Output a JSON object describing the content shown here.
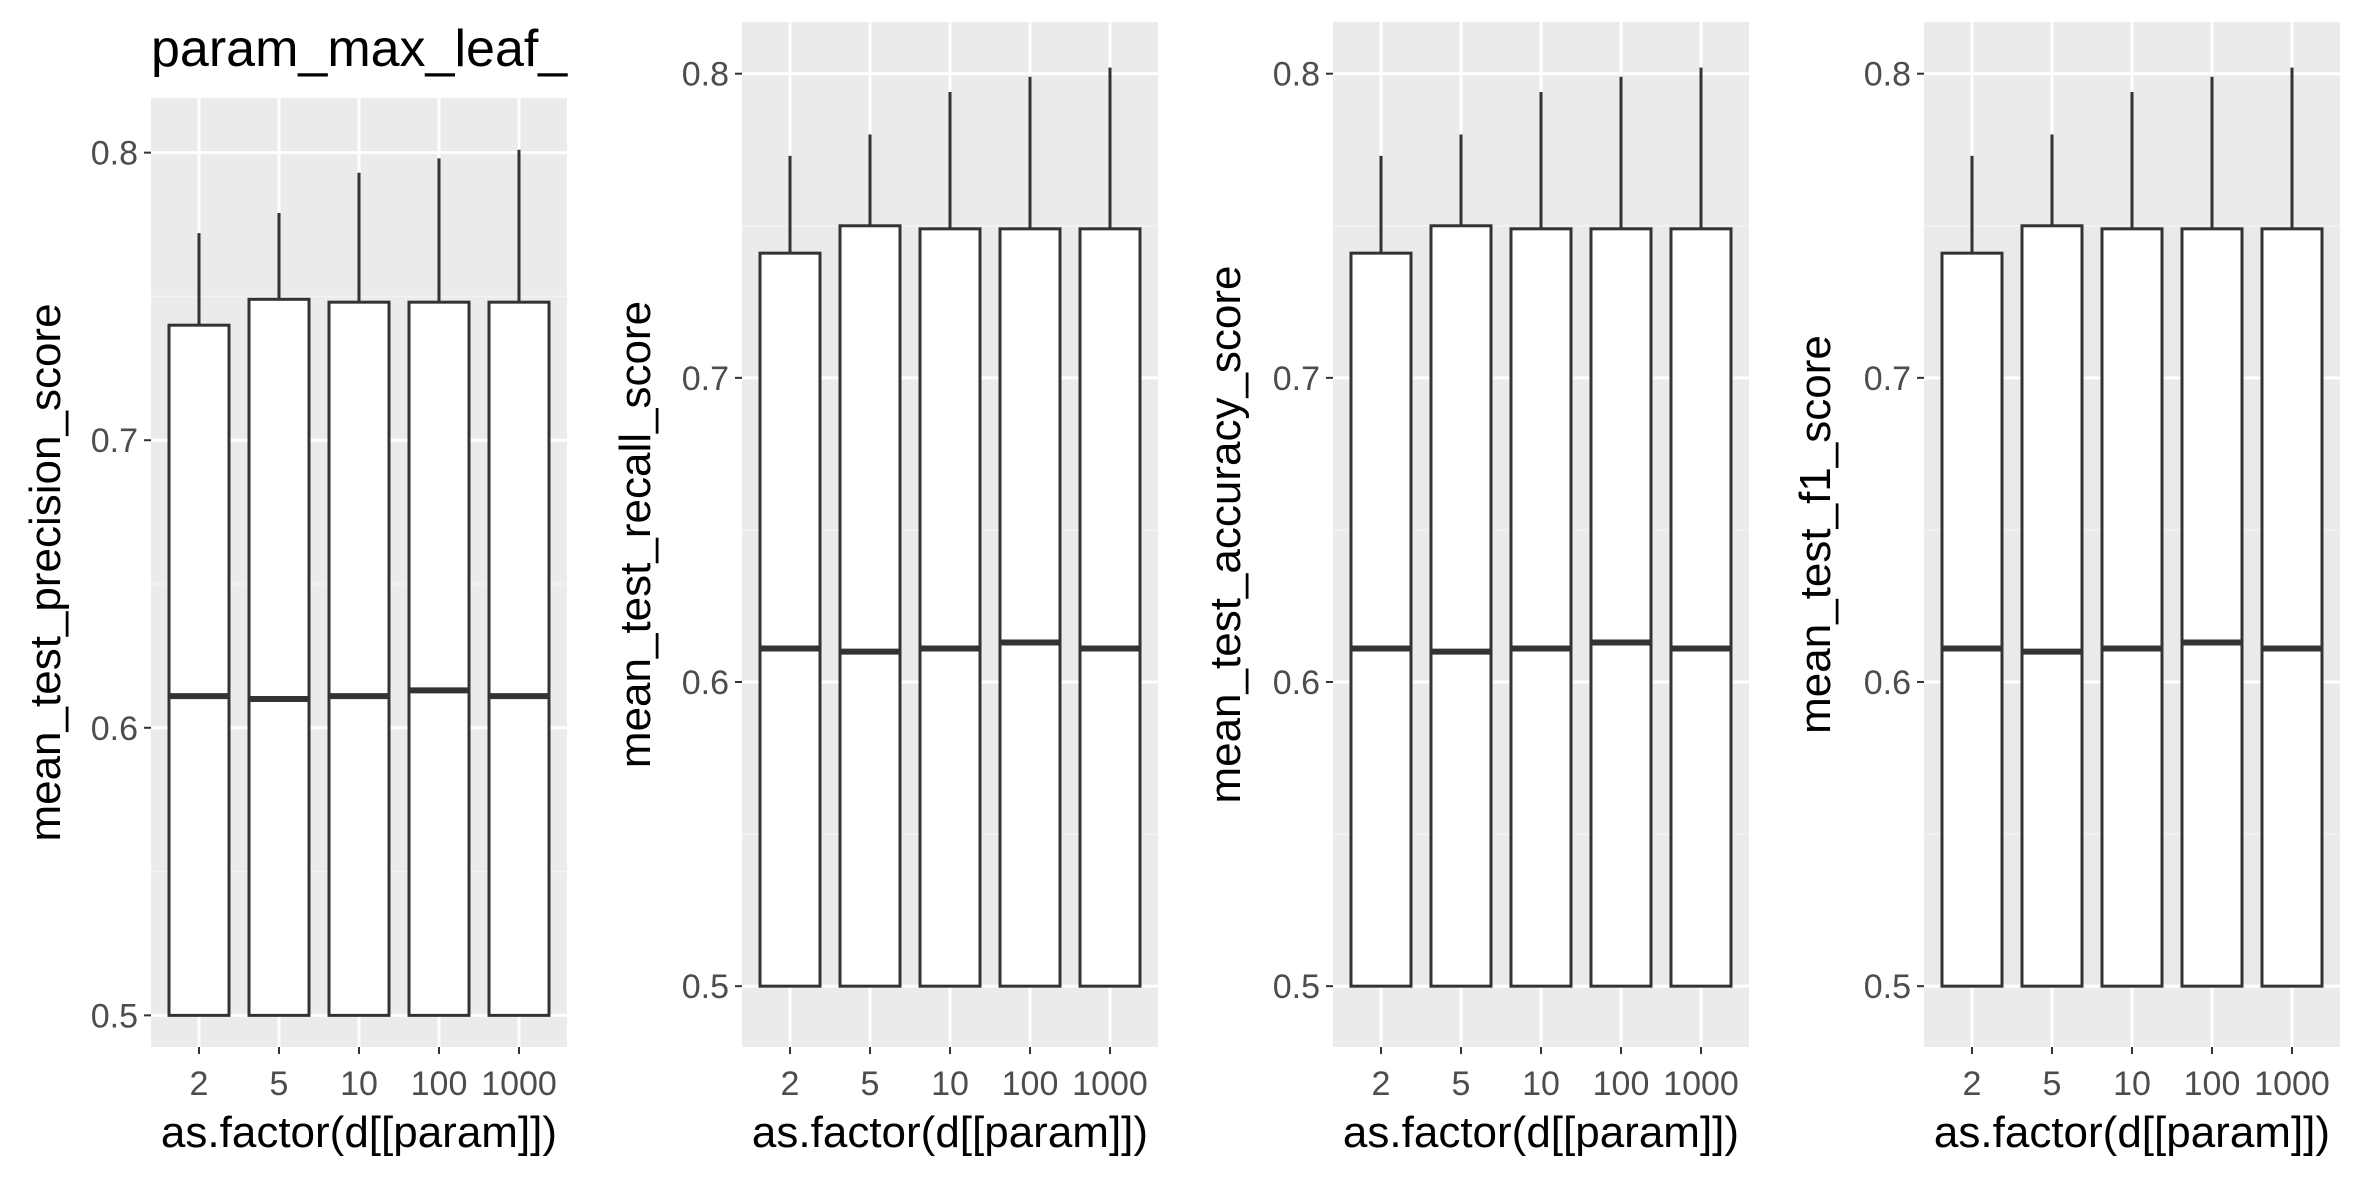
{
  "colors": {
    "panel_bg": "#ebebeb",
    "grid_major": "#ffffff",
    "grid_minor": "#f3f3f3",
    "box_fill": "#ffffff",
    "box_stroke": "#333333",
    "tick_text": "#4d4d4d",
    "tick_mark": "#333333"
  },
  "chart_data": [
    {
      "type": "boxplot",
      "title": "param_max_leaf_",
      "xlabel": "as.factor(d[[param]])",
      "ylabel": "mean_test_precision_score",
      "categories": [
        "2",
        "5",
        "10",
        "100",
        "1000"
      ],
      "yticks": [
        "0.5",
        "0.6",
        "0.7",
        "0.8"
      ],
      "ylim": [
        0.489,
        0.819
      ],
      "grid": true,
      "boxes": [
        {
          "category": "2",
          "lower": 0.5,
          "q1": 0.5,
          "median": 0.611,
          "q3": 0.74,
          "upper": 0.772
        },
        {
          "category": "5",
          "lower": 0.5,
          "q1": 0.5,
          "median": 0.61,
          "q3": 0.749,
          "upper": 0.779
        },
        {
          "category": "10",
          "lower": 0.5,
          "q1": 0.5,
          "median": 0.611,
          "q3": 0.748,
          "upper": 0.793
        },
        {
          "category": "100",
          "lower": 0.5,
          "q1": 0.5,
          "median": 0.613,
          "q3": 0.748,
          "upper": 0.798
        },
        {
          "category": "1000",
          "lower": 0.5,
          "q1": 0.5,
          "median": 0.611,
          "q3": 0.748,
          "upper": 0.801
        }
      ]
    },
    {
      "type": "boxplot",
      "title": "",
      "xlabel": "as.factor(d[[param]])",
      "ylabel": "mean_test_recall_score",
      "categories": [
        "2",
        "5",
        "10",
        "100",
        "1000"
      ],
      "yticks": [
        "0.5",
        "0.6",
        "0.7",
        "0.8"
      ],
      "ylim": [
        0.48,
        0.817
      ],
      "grid": true,
      "boxes": [
        {
          "category": "2",
          "lower": 0.5,
          "q1": 0.5,
          "median": 0.611,
          "q3": 0.741,
          "upper": 0.773
        },
        {
          "category": "5",
          "lower": 0.5,
          "q1": 0.5,
          "median": 0.61,
          "q3": 0.75,
          "upper": 0.78
        },
        {
          "category": "10",
          "lower": 0.5,
          "q1": 0.5,
          "median": 0.611,
          "q3": 0.749,
          "upper": 0.794
        },
        {
          "category": "100",
          "lower": 0.5,
          "q1": 0.5,
          "median": 0.613,
          "q3": 0.749,
          "upper": 0.799
        },
        {
          "category": "1000",
          "lower": 0.5,
          "q1": 0.5,
          "median": 0.611,
          "q3": 0.749,
          "upper": 0.802
        }
      ]
    },
    {
      "type": "boxplot",
      "title": "",
      "xlabel": "as.factor(d[[param]])",
      "ylabel": "mean_test_accuracy_score",
      "categories": [
        "2",
        "5",
        "10",
        "100",
        "1000"
      ],
      "yticks": [
        "0.5",
        "0.6",
        "0.7",
        "0.8"
      ],
      "ylim": [
        0.48,
        0.817
      ],
      "grid": true,
      "boxes": [
        {
          "category": "2",
          "lower": 0.5,
          "q1": 0.5,
          "median": 0.611,
          "q3": 0.741,
          "upper": 0.773
        },
        {
          "category": "5",
          "lower": 0.5,
          "q1": 0.5,
          "median": 0.61,
          "q3": 0.75,
          "upper": 0.78
        },
        {
          "category": "10",
          "lower": 0.5,
          "q1": 0.5,
          "median": 0.611,
          "q3": 0.749,
          "upper": 0.794
        },
        {
          "category": "100",
          "lower": 0.5,
          "q1": 0.5,
          "median": 0.613,
          "q3": 0.749,
          "upper": 0.799
        },
        {
          "category": "1000",
          "lower": 0.5,
          "q1": 0.5,
          "median": 0.611,
          "q3": 0.749,
          "upper": 0.802
        }
      ]
    },
    {
      "type": "boxplot",
      "title": "",
      "xlabel": "as.factor(d[[param]])",
      "ylabel": "mean_test_f1_score",
      "categories": [
        "2",
        "5",
        "10",
        "100",
        "1000"
      ],
      "yticks": [
        "0.5",
        "0.6",
        "0.7",
        "0.8"
      ],
      "ylim": [
        0.48,
        0.817
      ],
      "grid": true,
      "boxes": [
        {
          "category": "2",
          "lower": 0.5,
          "q1": 0.5,
          "median": 0.611,
          "q3": 0.741,
          "upper": 0.773
        },
        {
          "category": "5",
          "lower": 0.5,
          "q1": 0.5,
          "median": 0.61,
          "q3": 0.75,
          "upper": 0.78
        },
        {
          "category": "10",
          "lower": 0.5,
          "q1": 0.5,
          "median": 0.611,
          "q3": 0.749,
          "upper": 0.794
        },
        {
          "category": "100",
          "lower": 0.5,
          "q1": 0.5,
          "median": 0.613,
          "q3": 0.749,
          "upper": 0.799
        },
        {
          "category": "1000",
          "lower": 0.5,
          "q1": 0.5,
          "median": 0.611,
          "q3": 0.749,
          "upper": 0.802
        }
      ]
    }
  ]
}
